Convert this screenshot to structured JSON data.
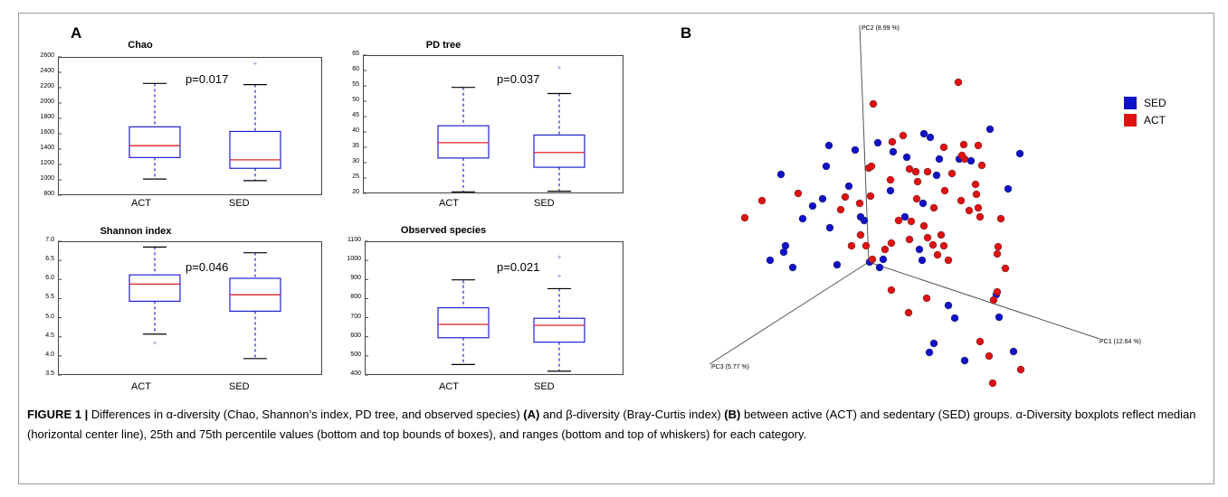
{
  "panel_labels": {
    "a": "A",
    "b": "B"
  },
  "chart_data": [
    {
      "type": "box",
      "title": "Chao",
      "annotation": "p=0.017",
      "categories": [
        "ACT",
        "SED"
      ],
      "yticks": [
        800,
        1000,
        1200,
        1400,
        1600,
        1800,
        2000,
        2200,
        2400,
        2600
      ],
      "ylim": [
        800,
        2600
      ],
      "boxes": [
        {
          "category": "ACT",
          "whisker_low": 1010,
          "q1": 1290,
          "median": 1445,
          "q3": 1690,
          "whisker_high": 2255,
          "outliers": []
        },
        {
          "category": "SED",
          "whisker_low": 990,
          "q1": 1150,
          "median": 1260,
          "q3": 1630,
          "whisker_high": 2240,
          "outliers": [
            2520
          ]
        }
      ]
    },
    {
      "type": "box",
      "title": "PD tree",
      "annotation": "p=0.037",
      "categories": [
        "ACT",
        "SED"
      ],
      "yticks": [
        20,
        25,
        30,
        35,
        40,
        45,
        50,
        55,
        60,
        65
      ],
      "ylim": [
        20,
        65
      ],
      "boxes": [
        {
          "category": "ACT",
          "whisker_low": 20.5,
          "q1": 31.5,
          "median": 36.5,
          "q3": 42,
          "whisker_high": 54.5,
          "outliers": []
        },
        {
          "category": "SED",
          "whisker_low": 20.7,
          "q1": 28.5,
          "median": 33.3,
          "q3": 39,
          "whisker_high": 52.5,
          "outliers": [
            61
          ]
        }
      ]
    },
    {
      "type": "box",
      "title": "Shannon index",
      "annotation": "p=0.046",
      "categories": [
        "ACT",
        "SED"
      ],
      "yticks": [
        3.5,
        4.0,
        4.5,
        5.0,
        5.5,
        6.0,
        6.5,
        7.0
      ],
      "ylim": [
        3.5,
        7.0
      ],
      "boxes": [
        {
          "category": "ACT",
          "whisker_low": 4.57,
          "q1": 5.43,
          "median": 5.88,
          "q3": 6.12,
          "whisker_high": 6.85,
          "outliers": [
            4.35
          ]
        },
        {
          "category": "SED",
          "whisker_low": 3.93,
          "q1": 5.17,
          "median": 5.6,
          "q3": 6.03,
          "whisker_high": 6.7,
          "outliers": []
        }
      ]
    },
    {
      "type": "box",
      "title": "Observed species",
      "annotation": "p=0.021",
      "categories": [
        "ACT",
        "SED"
      ],
      "yticks": [
        400,
        500,
        600,
        700,
        800,
        900,
        1000,
        1100
      ],
      "ylim": [
        400,
        1100
      ],
      "boxes": [
        {
          "category": "ACT",
          "whisker_low": 455,
          "q1": 595,
          "median": 665,
          "q3": 752,
          "whisker_high": 898,
          "outliers": [
            885
          ]
        },
        {
          "category": "SED",
          "whisker_low": 420,
          "q1": 572,
          "median": 660,
          "q3": 697,
          "whisker_high": 852,
          "outliers": [
            920,
            1020
          ]
        }
      ]
    },
    {
      "type": "scatter",
      "axes": {
        "pc1": "PC1 (12.64 %)",
        "pc2": "PC2 (8.99 %)",
        "pc3": "PC3 (5.77 %)"
      },
      "legend": [
        {
          "name": "SED",
          "color": "#1010c8"
        },
        {
          "name": "ACT",
          "color": "#e01010"
        }
      ],
      "series": [
        {
          "name": "SED",
          "points": [
            [
              916,
              161
            ],
            [
              945,
              166
            ],
            [
              970,
              158
            ],
            [
              987,
              168
            ],
            [
              1002,
              174
            ],
            [
              1021,
              148
            ],
            [
              1028,
              152
            ],
            [
              1094,
              143
            ],
            [
              1127,
              170
            ],
            [
              863,
              193
            ],
            [
              913,
              184
            ],
            [
              938,
              206
            ],
            [
              898,
              228
            ],
            [
              887,
              242
            ],
            [
              909,
              220
            ],
            [
              984,
              211
            ],
            [
              1000,
              240
            ],
            [
              1020,
              225
            ],
            [
              1038,
              176
            ],
            [
              1060,
              176
            ],
            [
              1073,
              178
            ],
            [
              1035,
              194
            ],
            [
              1114,
              209
            ],
            [
              851,
              288
            ],
            [
              876,
              296
            ],
            [
              866,
              279
            ],
            [
              868,
              272
            ],
            [
              917,
              252
            ],
            [
              925,
              293
            ],
            [
              961,
              290
            ],
            [
              972,
              296
            ],
            [
              976,
              287
            ],
            [
              1019,
              288
            ],
            [
              1016,
              276
            ],
            [
              1048,
              338
            ],
            [
              1055,
              352
            ],
            [
              1101,
              326
            ],
            [
              1104,
              351
            ],
            [
              1032,
              380
            ],
            [
              1027,
              390
            ],
            [
              1066,
              399
            ],
            [
              1120,
              389
            ],
            [
              955,
              244
            ],
            [
              951,
              240
            ]
          ]
        },
        {
          "name": "ACT",
          "points": [
            [
              965,
              115
            ],
            [
              1059,
              91
            ],
            [
              998,
              150
            ],
            [
              986,
              157
            ],
            [
              1043,
              163
            ],
            [
              1065,
              160
            ],
            [
              1081,
              161
            ],
            [
              1066,
              176
            ],
            [
              1052,
              192
            ],
            [
              1085,
              183
            ],
            [
              960,
              186
            ],
            [
              963,
              184
            ],
            [
              984,
              199
            ],
            [
              1005,
              187
            ],
            [
              1012,
              190
            ],
            [
              1025,
              190
            ],
            [
              1063,
              172
            ],
            [
              1078,
              204
            ],
            [
              1079,
              215
            ],
            [
              1081,
              230
            ],
            [
              1083,
              240
            ],
            [
              1106,
              242
            ],
            [
              1014,
              201
            ],
            [
              1044,
              211
            ],
            [
              1062,
              222
            ],
            [
              1071,
              233
            ],
            [
              1032,
              230
            ],
            [
              842,
              222
            ],
            [
              823,
              241
            ],
            [
              882,
              214
            ],
            [
              934,
              218
            ],
            [
              929,
              232
            ],
            [
              950,
              225
            ],
            [
              951,
              260
            ],
            [
              985,
              269
            ],
            [
              993,
              244
            ],
            [
              1005,
              265
            ],
            [
              1021,
              250
            ],
            [
              1025,
              263
            ],
            [
              1031,
              271
            ],
            [
              1043,
              272
            ],
            [
              1048,
              288
            ],
            [
              1013,
              220
            ],
            [
              957,
              272
            ],
            [
              978,
              276
            ],
            [
              1040,
              260
            ],
            [
              941,
              272
            ],
            [
              962,
              217
            ],
            [
              964,
              287
            ],
            [
              985,
              321
            ],
            [
              1004,
              346
            ],
            [
              1024,
              330
            ],
            [
              1036,
              282
            ],
            [
              1103,
              273
            ],
            [
              1102,
              281
            ],
            [
              1111,
              297
            ],
            [
              1102,
              323
            ],
            [
              1098,
              332
            ],
            [
              1083,
              378
            ],
            [
              1093,
              394
            ],
            [
              1128,
              409
            ],
            [
              1097,
              424
            ],
            [
              1007,
              245
            ]
          ]
        }
      ]
    }
  ],
  "caption": {
    "figure_label": "FIGURE 1 |",
    "t1": " Differences in α-diversity (Chao, Shannon’s index, PD tree, and observed species) ",
    "b1": "(A)",
    "t2": " and β-diversity (Bray-Curtis index) ",
    "b2": "(B)",
    "t3": " between active (ACT) and sedentary (SED) groups. α-Diversity boxplots reflect median (horizontal center line), 25th and 75th percentile values (bottom and top bounds of boxes), and ranges (bottom and top of whiskers) for each category."
  }
}
